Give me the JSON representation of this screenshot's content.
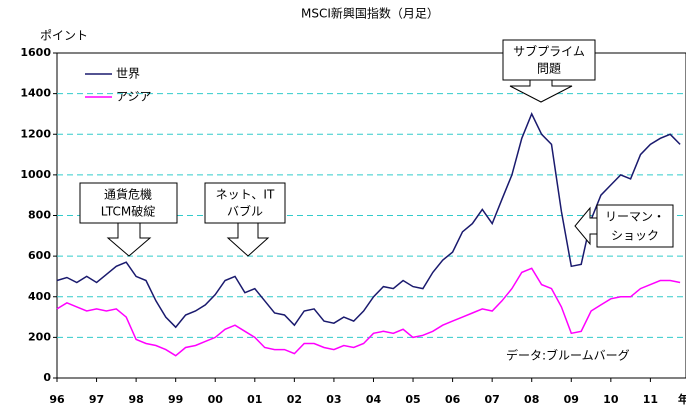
{
  "chart_data": {
    "type": "line",
    "title": "MSCI新興国指数（月足）",
    "ylabel": "ポイント",
    "xlabel": "年",
    "source": "データ:ブルームバーグ",
    "annotations": [
      [
        "通貨危機",
        "LTCM破綻"
      ],
      [
        "ネット、IT",
        "バブル"
      ],
      [
        "サブプライム",
        "問題"
      ],
      [
        "リーマン・",
        "ショック"
      ]
    ],
    "x": [
      1996,
      1996.25,
      1996.5,
      1996.75,
      1997,
      1997.25,
      1997.5,
      1997.75,
      1998,
      1998.25,
      1998.5,
      1998.75,
      1999,
      1999.25,
      1999.5,
      1999.75,
      2000,
      2000.25,
      2000.5,
      2000.75,
      2001,
      2001.25,
      2001.5,
      2001.75,
      2002,
      2002.25,
      2002.5,
      2002.75,
      2003,
      2003.25,
      2003.5,
      2003.75,
      2004,
      2004.25,
      2004.5,
      2004.75,
      2005,
      2005.25,
      2005.5,
      2005.75,
      2006,
      2006.25,
      2006.5,
      2006.75,
      2007,
      2007.25,
      2007.5,
      2007.75,
      2008,
      2008.25,
      2008.5,
      2008.75,
      2009,
      2009.25,
      2009.5,
      2009.75,
      2010,
      2010.25,
      2010.5,
      2010.75,
      2011,
      2011.25,
      2011.5,
      2011.75
    ],
    "series": [
      {
        "name": "世界",
        "color": "#1a1a6e",
        "values": [
          480,
          495,
          470,
          500,
          470,
          510,
          550,
          570,
          500,
          480,
          380,
          300,
          250,
          310,
          330,
          360,
          410,
          480,
          500,
          420,
          440,
          380,
          320,
          310,
          260,
          330,
          340,
          280,
          270,
          300,
          280,
          330,
          400,
          450,
          440,
          480,
          450,
          440,
          520,
          580,
          620,
          720,
          760,
          830,
          760,
          880,
          1000,
          1180,
          1300,
          1200,
          1150,
          820,
          550,
          560,
          780,
          900,
          950,
          1000,
          980,
          1100,
          1150,
          1180,
          1200,
          1150
        ]
      },
      {
        "name": "アジア",
        "color": "#ff00ff",
        "values": [
          340,
          370,
          350,
          330,
          340,
          330,
          340,
          300,
          190,
          170,
          160,
          140,
          110,
          150,
          160,
          180,
          200,
          240,
          260,
          230,
          200,
          150,
          140,
          140,
          120,
          170,
          170,
          150,
          140,
          160,
          150,
          170,
          220,
          230,
          220,
          240,
          200,
          210,
          230,
          260,
          280,
          300,
          320,
          340,
          330,
          380,
          440,
          520,
          540,
          460,
          440,
          350,
          220,
          230,
          330,
          360,
          390,
          400,
          400,
          440,
          460,
          480,
          480,
          470
        ]
      }
    ],
    "xlim": [
      1996,
      2011.9
    ],
    "xticks": [
      {
        "value": 1996,
        "label": "96"
      },
      {
        "value": 1997,
        "label": "97"
      },
      {
        "value": 1998,
        "label": "98"
      },
      {
        "value": 1999,
        "label": "99"
      },
      {
        "value": 2000,
        "label": "00"
      },
      {
        "value": 2001,
        "label": "01"
      },
      {
        "value": 2002,
        "label": "02"
      },
      {
        "value": 2003,
        "label": "03"
      },
      {
        "value": 2004,
        "label": "04"
      },
      {
        "value": 2005,
        "label": "05"
      },
      {
        "value": 2006,
        "label": "06"
      },
      {
        "value": 2007,
        "label": "07"
      },
      {
        "value": 2008,
        "label": "08"
      },
      {
        "value": 2009,
        "label": "09"
      },
      {
        "value": 2010,
        "label": "10"
      },
      {
        "value": 2011,
        "label": "11"
      }
    ],
    "ylim": [
      0,
      1600
    ],
    "yticks": [
      0,
      200,
      400,
      600,
      800,
      1000,
      1200,
      1400,
      1600
    ],
    "grid": true
  }
}
